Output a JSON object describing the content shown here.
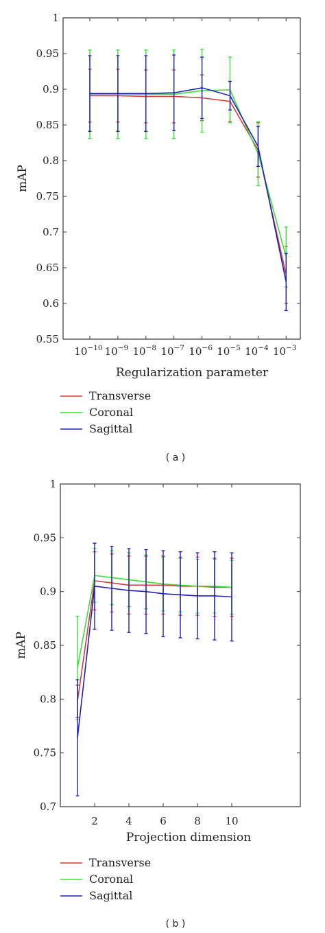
{
  "colors": {
    "transverse": "#d63a3a",
    "coronal": "#38e038",
    "sagittal": "#1f1fb4"
  },
  "chart_data": [
    {
      "type": "line",
      "caption": "( a )",
      "xlabel": "Regularization parameter",
      "ylabel": "mAP",
      "ylim": [
        0.55,
        1
      ],
      "yticks": [
        "0.55",
        "0.6",
        "0.65",
        "0.7",
        "0.75",
        "0.8",
        "0.85",
        "0.9",
        "0.95",
        "1"
      ],
      "categories": [
        {
          "base": "10",
          "exp": "−10"
        },
        {
          "base": "10",
          "exp": "−9"
        },
        {
          "base": "10",
          "exp": "−8"
        },
        {
          "base": "10",
          "exp": "−7"
        },
        {
          "base": "10",
          "exp": "−6"
        },
        {
          "base": "10",
          "exp": "−5"
        },
        {
          "base": "10",
          "exp": "−4"
        },
        {
          "base": "10",
          "exp": "−3"
        }
      ],
      "legend_position": "below",
      "grid": false,
      "series": [
        {
          "name": "Transverse",
          "color_key": "transverse",
          "values": [
            0.891,
            0.891,
            0.89,
            0.89,
            0.888,
            0.883,
            0.815,
            0.64
          ],
          "error": [
            0.037,
            0.037,
            0.037,
            0.037,
            0.032,
            0.028,
            0.038,
            0.04
          ]
        },
        {
          "name": "Coronal",
          "color_key": "coronal",
          "values": [
            0.893,
            0.893,
            0.893,
            0.893,
            0.898,
            0.899,
            0.81,
            0.665
          ],
          "error": [
            0.062,
            0.062,
            0.062,
            0.062,
            0.058,
            0.046,
            0.045,
            0.042
          ]
        },
        {
          "name": "Sagittal",
          "color_key": "sagittal",
          "values": [
            0.894,
            0.894,
            0.894,
            0.895,
            0.902,
            0.891,
            0.82,
            0.63
          ],
          "error": [
            0.053,
            0.053,
            0.053,
            0.053,
            0.043,
            0.02,
            0.028,
            0.04
          ]
        }
      ]
    },
    {
      "type": "line",
      "caption": "( b )",
      "xlabel": "Projection dimension",
      "ylabel": "mAP",
      "ylim": [
        0.7,
        1
      ],
      "xlim": [
        0,
        14
      ],
      "yticks": [
        "0.7",
        "0.75",
        "0.8",
        "0.85",
        "0.9",
        "0.95",
        "1"
      ],
      "xticks": [
        2,
        4,
        6,
        8,
        10
      ],
      "x": [
        1,
        2,
        3,
        4,
        5,
        6,
        7,
        8,
        9,
        10
      ],
      "legend_position": "below",
      "grid": false,
      "series": [
        {
          "name": "Transverse",
          "color_key": "transverse",
          "values": [
            0.798,
            0.91,
            0.908,
            0.906,
            0.906,
            0.906,
            0.905,
            0.905,
            0.904,
            0.904
          ],
          "error": [
            0.015,
            0.027,
            0.027,
            0.027,
            0.027,
            0.027,
            0.027,
            0.027,
            0.027,
            0.027
          ]
        },
        {
          "name": "Coronal",
          "color_key": "coronal",
          "values": [
            0.829,
            0.915,
            0.913,
            0.911,
            0.909,
            0.907,
            0.906,
            0.905,
            0.905,
            0.904
          ],
          "error": [
            0.048,
            0.025,
            0.025,
            0.025,
            0.025,
            0.025,
            0.025,
            0.025,
            0.025,
            0.025
          ]
        },
        {
          "name": "Sagittal",
          "color_key": "sagittal",
          "values": [
            0.764,
            0.905,
            0.903,
            0.901,
            0.9,
            0.898,
            0.897,
            0.896,
            0.896,
            0.895
          ],
          "error": [
            0.054,
            0.04,
            0.039,
            0.039,
            0.039,
            0.04,
            0.04,
            0.04,
            0.041,
            0.041
          ]
        }
      ]
    }
  ]
}
